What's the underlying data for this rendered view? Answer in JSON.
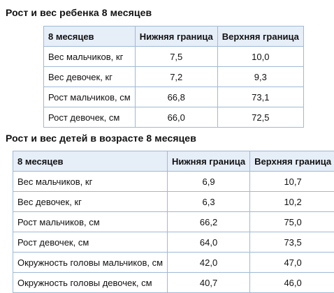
{
  "section1": {
    "title": "Рост и вес ребенка 8 месяцев",
    "table": {
      "headers": [
        "8 месяцев",
        "Нижняя граница",
        "Верхняя граница"
      ],
      "rows": [
        [
          "Вес мальчиков, кг",
          "7,5",
          "10,0"
        ],
        [
          "Вес девочек, кг",
          "7,2",
          "9,3"
        ],
        [
          "Рост мальчиков, см",
          "66,8",
          "73,1"
        ],
        [
          "Рост девочек, см",
          "66,0",
          "72,5"
        ]
      ]
    }
  },
  "section2": {
    "title": "Рост и вес детей в возрасте 8 месяцев",
    "table": {
      "headers": [
        "8 месяцев",
        "Нижняя граница",
        "Верхняя граница"
      ],
      "rows": [
        [
          "Вес мальчиков, кг",
          "6,9",
          "10,7"
        ],
        [
          "Вес девочек, кг",
          "6,3",
          "10,2"
        ],
        [
          "Рост мальчиков, см",
          "66,2",
          "75,0"
        ],
        [
          "Рост девочек, см",
          "64,0",
          "73,5"
        ],
        [
          "Окружность головы мальчиков, см",
          "42,0",
          "47,0"
        ],
        [
          "Окружность головы девочек, см",
          "40,7",
          "46,0"
        ]
      ]
    }
  },
  "colors": {
    "header_background": "#e6eef8",
    "border": "#9fb9d6",
    "text": "#111111"
  }
}
